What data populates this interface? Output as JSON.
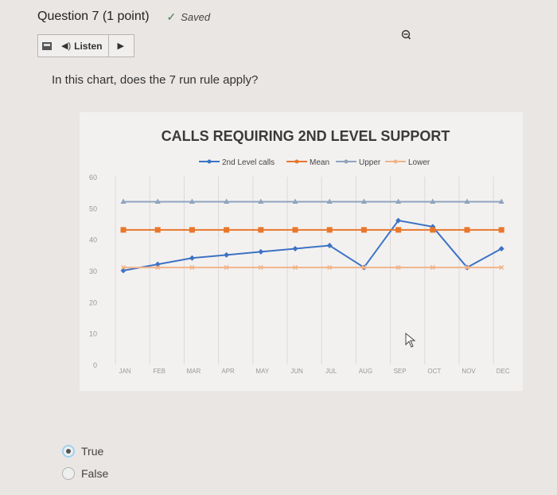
{
  "header": {
    "question_title": "Question 7 (1 point)",
    "saved_label": "Saved",
    "saved_icon": "check-icon"
  },
  "toolbar": {
    "listen_label": "Listen",
    "speaker_icon": "speaker-icon",
    "play_icon": "play-icon",
    "menu_icon": "menu-icon"
  },
  "question": {
    "text": "In this chart, does the 7 run rule apply?"
  },
  "options": [
    {
      "label": "True",
      "selected": true
    },
    {
      "label": "False",
      "selected": false
    }
  ],
  "chart_data": {
    "type": "line",
    "title": "CALLS REQUIRING 2ND LEVEL SUPPORT",
    "categories": [
      "JAN",
      "FEB",
      "MAR",
      "APR",
      "MAY",
      "JUN",
      "JUL",
      "AUG",
      "SEP",
      "OCT",
      "NOV",
      "DEC"
    ],
    "yticks": [
      0,
      10,
      20,
      30,
      40,
      50,
      60
    ],
    "ylim": [
      0,
      60
    ],
    "legend_position": "top-center",
    "grid": "vertical",
    "series": [
      {
        "name": "2nd Level calls",
        "color": "#3d73c4",
        "marker": "diamond",
        "values": [
          30,
          32,
          34,
          35,
          36,
          37,
          38,
          31,
          46,
          44,
          31,
          37
        ]
      },
      {
        "name": "Mean",
        "color": "#e8772c",
        "marker": "square",
        "values": [
          43,
          43,
          43,
          43,
          43,
          43,
          43,
          43,
          43,
          43,
          43,
          43
        ]
      },
      {
        "name": "Upper",
        "color": "#8fa4bf",
        "marker": "triangle",
        "values": [
          52,
          52,
          52,
          52,
          52,
          52,
          52,
          52,
          52,
          52,
          52,
          52
        ]
      },
      {
        "name": "Lower",
        "color": "#f0b48a",
        "marker": "x",
        "values": [
          31,
          31,
          31,
          31,
          31,
          31,
          31,
          31,
          31,
          31,
          31,
          31
        ]
      }
    ]
  }
}
